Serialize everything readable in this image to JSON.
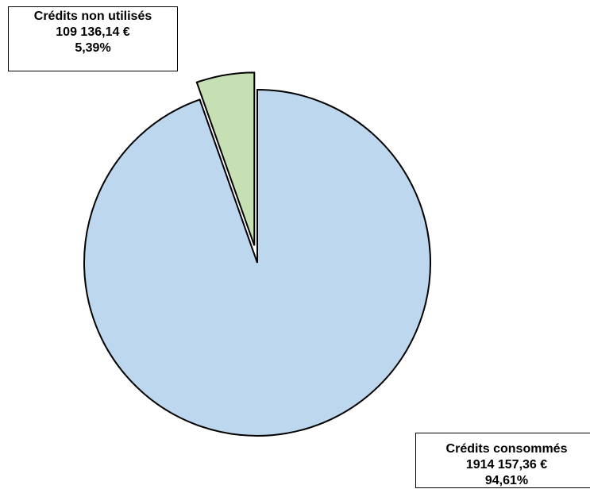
{
  "chart_data": {
    "type": "pie",
    "title": "",
    "categories": [
      "Crédits non utilisés",
      "Crédits consommés"
    ],
    "values": [
      109136.14,
      1914157.36
    ],
    "percentages": [
      5.39,
      94.61
    ],
    "colors": [
      "#c6e0b4",
      "#bdd7ee"
    ],
    "exploded": [
      "Crédits non utilisés"
    ],
    "data_labels": [
      {
        "category": "Crédits non utilisés",
        "name": "Crédits non utilisés",
        "value": "109 136,14 €",
        "percent": "5,39%"
      },
      {
        "category": "Crédits consommés",
        "name": "Crédits consommés",
        "value": "1914 157,36 €",
        "percent": "94,61%"
      }
    ],
    "legend": "none",
    "start_angle": "12 o'clock, clockwise from the consumed slice"
  }
}
